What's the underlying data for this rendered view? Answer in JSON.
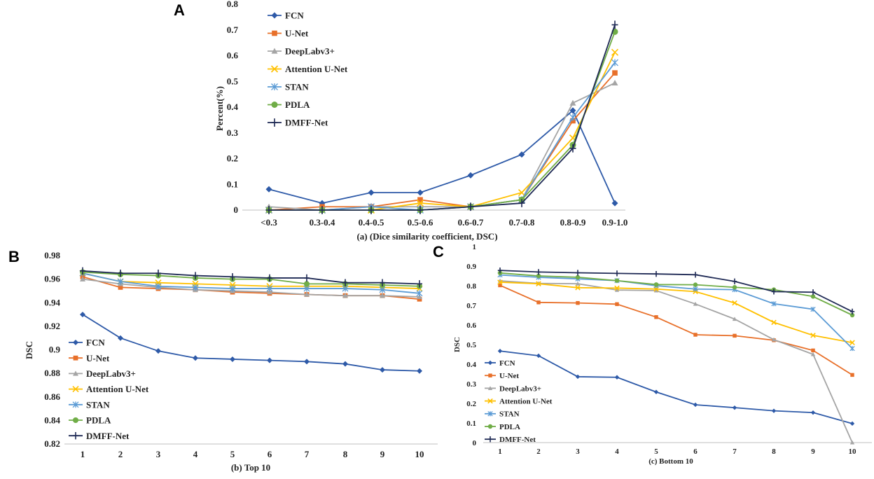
{
  "colors": {
    "FCN": "#2e5aa8",
    "U-Net": "#e8702a",
    "DeepLabv3+": "#a5a5a5",
    "Attention U-Net": "#ffc000",
    "STAN": "#5b9bd5",
    "PDLA": "#70ad47",
    "DMFF-Net": "#1f2a55"
  },
  "markers": {
    "FCN": "diamond",
    "U-Net": "square",
    "DeepLabv3+": "triangle",
    "Attention U-Net": "x",
    "STAN": "star",
    "PDLA": "circle",
    "DMFF-Net": "plus"
  },
  "chart_data": [
    {
      "id": "A",
      "panel_label": "A",
      "type": "line",
      "title": "",
      "xlabel": "(a)  (Dice similarity coefficient, DSC)",
      "ylabel": "Percent(%)",
      "categories": [
        "<0.3",
        "0.3-0.4",
        "0.4-0.5",
        "0.5-0.6",
        "0.6-0.7",
        "0.7-0.8",
        "0.8-0.9",
        "0.9-1.0"
      ],
      "ylim": [
        0,
        0.8
      ],
      "yticks": [
        0,
        0.1,
        0.2,
        0.3,
        0.4,
        0.5,
        0.6,
        0.7,
        0.8
      ],
      "ytick_labels": [
        "0",
        "0.1",
        "0.2",
        "0.3",
        "0.4",
        "0.5",
        "0.6",
        "0.7",
        "0.8"
      ],
      "legend_position": "top-left",
      "series": [
        {
          "name": "FCN",
          "values": [
            0.081,
            0.027,
            0.068,
            0.068,
            0.135,
            0.216,
            0.387,
            0.027
          ]
        },
        {
          "name": "U-Net",
          "values": [
            0.0,
            0.013,
            0.013,
            0.04,
            0.013,
            0.04,
            0.347,
            0.533
          ]
        },
        {
          "name": "DeepLabv3+",
          "values": [
            0.013,
            0.0,
            0.013,
            0.013,
            0.013,
            0.04,
            0.416,
            0.494
          ]
        },
        {
          "name": "Attention U-Net",
          "values": [
            0.0,
            0.0,
            0.0,
            0.027,
            0.013,
            0.068,
            0.28,
            0.613
          ]
        },
        {
          "name": "STAN",
          "values": [
            0.0,
            0.0,
            0.013,
            0.0,
            0.013,
            0.04,
            0.36,
            0.573
          ]
        },
        {
          "name": "PDLA",
          "values": [
            0.0,
            0.0,
            0.0,
            0.0,
            0.013,
            0.04,
            0.253,
            0.693
          ]
        },
        {
          "name": "DMFF-Net",
          "values": [
            0.0,
            0.0,
            0.0,
            0.0,
            0.013,
            0.027,
            0.24,
            0.72
          ]
        }
      ]
    },
    {
      "id": "B",
      "panel_label": "B",
      "type": "line",
      "title": "",
      "xlabel": "(b)  Top 10",
      "ylabel": "DSC",
      "categories": [
        "1",
        "2",
        "3",
        "4",
        "5",
        "6",
        "7",
        "8",
        "9",
        "10"
      ],
      "ylim": [
        0.82,
        0.98
      ],
      "yticks": [
        0.82,
        0.84,
        0.86,
        0.88,
        0.9,
        0.92,
        0.94,
        0.96,
        0.98
      ],
      "ytick_labels": [
        "0.82",
        "0.84",
        "0.86",
        "0.88",
        "0.9",
        "0.92",
        "0.94",
        "0.96",
        "0.98"
      ],
      "legend_position": "bottom-left",
      "series": [
        {
          "name": "FCN",
          "values": [
            0.93,
            0.91,
            0.899,
            0.893,
            0.892,
            0.891,
            0.89,
            0.888,
            0.883,
            0.882
          ]
        },
        {
          "name": "U-Net",
          "values": [
            0.962,
            0.953,
            0.952,
            0.951,
            0.949,
            0.948,
            0.947,
            0.946,
            0.946,
            0.943
          ]
        },
        {
          "name": "DeepLabv3+",
          "values": [
            0.96,
            0.956,
            0.953,
            0.951,
            0.95,
            0.949,
            0.947,
            0.946,
            0.946,
            0.945
          ]
        },
        {
          "name": "Attention U-Net",
          "values": [
            0.965,
            0.958,
            0.957,
            0.956,
            0.955,
            0.954,
            0.954,
            0.954,
            0.953,
            0.952
          ]
        },
        {
          "name": "STAN",
          "values": [
            0.965,
            0.958,
            0.954,
            0.953,
            0.952,
            0.952,
            0.952,
            0.952,
            0.951,
            0.948
          ]
        },
        {
          "name": "PDLA",
          "values": [
            0.966,
            0.964,
            0.963,
            0.961,
            0.96,
            0.96,
            0.956,
            0.956,
            0.955,
            0.954
          ]
        },
        {
          "name": "DMFF-Net",
          "values": [
            0.967,
            0.965,
            0.965,
            0.963,
            0.962,
            0.961,
            0.961,
            0.957,
            0.957,
            0.956
          ]
        }
      ]
    },
    {
      "id": "C",
      "panel_label": "C",
      "type": "line",
      "title": "",
      "xlabel": "(c)  Bottom 10",
      "ylabel": "DSC",
      "categories": [
        "1",
        "2",
        "3",
        "4",
        "5",
        "6",
        "7",
        "8",
        "9",
        "10"
      ],
      "ylim": [
        0,
        1
      ],
      "yticks": [
        0,
        0.1,
        0.2,
        0.3,
        0.4,
        0.5,
        0.6,
        0.7,
        0.8,
        0.9,
        1
      ],
      "ytick_labels": [
        "0",
        "0.1",
        "0.2",
        "0.3",
        "0.4",
        "0.5",
        "0.6",
        "0.7",
        "0.8",
        "0.9",
        "1"
      ],
      "legend_position": "bottom-left",
      "series": [
        {
          "name": "FCN",
          "values": [
            0.467,
            0.443,
            0.336,
            0.333,
            0.258,
            0.193,
            0.178,
            0.162,
            0.153,
            0.097
          ]
        },
        {
          "name": "U-Net",
          "values": [
            0.802,
            0.715,
            0.712,
            0.706,
            0.64,
            0.55,
            0.545,
            0.522,
            0.47,
            0.345
          ]
        },
        {
          "name": "DeepLabv3+",
          "values": [
            0.825,
            0.812,
            0.81,
            0.778,
            0.775,
            0.707,
            0.63,
            0.525,
            0.45,
            0.0
          ]
        },
        {
          "name": "Attention U-Net",
          "values": [
            0.818,
            0.81,
            0.79,
            0.788,
            0.783,
            0.77,
            0.712,
            0.613,
            0.547,
            0.51
          ]
        },
        {
          "name": "STAN",
          "values": [
            0.855,
            0.843,
            0.835,
            0.826,
            0.8,
            0.783,
            0.78,
            0.708,
            0.68,
            0.48
          ]
        },
        {
          "name": "PDLA",
          "values": [
            0.865,
            0.85,
            0.843,
            0.826,
            0.806,
            0.805,
            0.792,
            0.78,
            0.745,
            0.65
          ]
        },
        {
          "name": "DMFF-Net",
          "values": [
            0.878,
            0.87,
            0.866,
            0.863,
            0.86,
            0.856,
            0.822,
            0.77,
            0.767,
            0.668
          ]
        }
      ]
    }
  ]
}
